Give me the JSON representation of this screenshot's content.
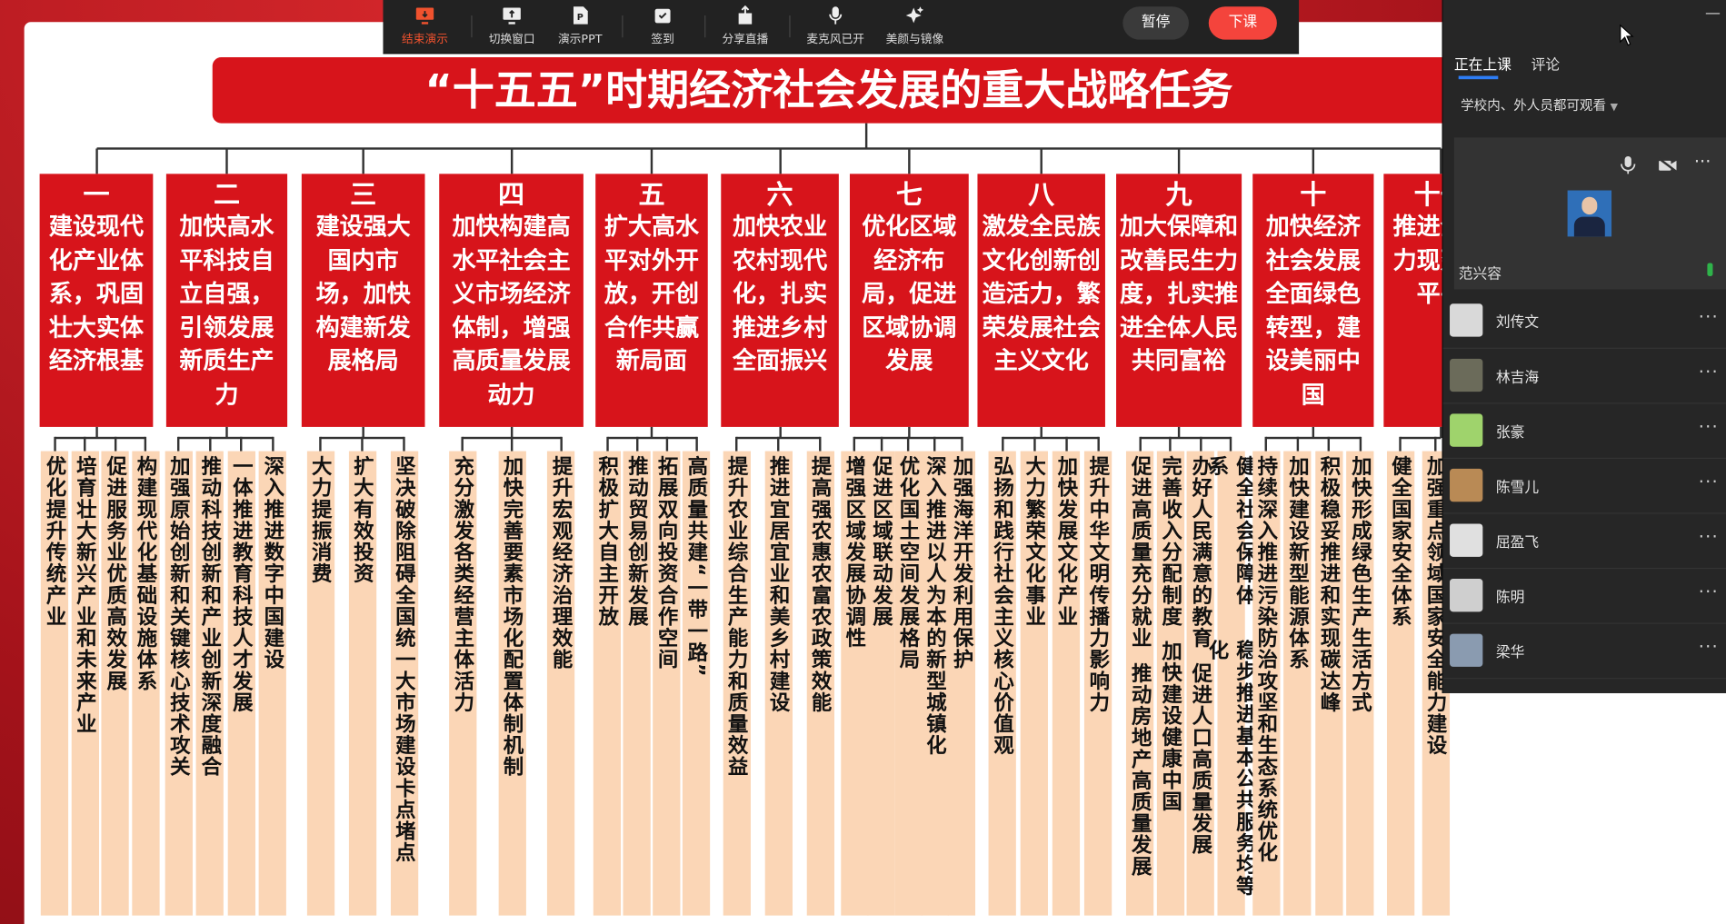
{
  "toolbar": {
    "buttons": [
      "结束演示",
      "切换窗口",
      "演示PPT",
      "签到",
      "分享直播",
      "麦克风已开",
      "美颜与镜像"
    ],
    "pause": "暂停",
    "end_class": "下课"
  },
  "slide": {
    "title": "“十五五”时期经济社会发展的重大战略任务",
    "columns": [
      {
        "number": "一",
        "heading": "建设现代化产业体系，巩固壮大实体经济根基",
        "strips": [
          [
            "优化提升传统产业"
          ],
          [
            "培育壮大新兴产业和未来产业"
          ],
          [
            "促进服务业优质高效发展"
          ],
          [
            "构建现代化基础设施体系"
          ]
        ]
      },
      {
        "number": "二",
        "heading": "加快高水平科技自立自强，引领发展新质生产力",
        "strips": [
          [
            "加强原始创新和关键核心技术攻关"
          ],
          [
            "推动科技创新和产业创新深度融合"
          ],
          [
            "一体推进教育科技人才发展"
          ],
          [
            "深入推进数字中国建设"
          ]
        ]
      },
      {
        "number": "三",
        "heading": "建设强大国内市场，加快构建新发展格局",
        "strips": [
          [
            "大力提振消费"
          ],
          [
            "扩大有效投资"
          ],
          [
            "坚决破除阻碍全国统一大市场建设卡点堵点"
          ]
        ]
      },
      {
        "number": "四",
        "heading": "加快构建高水平社会主义市场经济体制，增强高质量发展动力",
        "strips": [
          [
            "充分激发各类经营主体活力"
          ],
          [
            "加快完善要素市场化配置体制机制"
          ],
          [
            "提升宏观经济治理效能"
          ]
        ]
      },
      {
        "number": "五",
        "heading": "扩大高水平对外开放，开创合作共赢新局面",
        "strips": [
          [
            "积极扩大自主开放"
          ],
          [
            "推动贸易创新发展"
          ],
          [
            "拓展双向投资合作空间"
          ],
          [
            "高质量共建“一带一路”"
          ]
        ]
      },
      {
        "number": "六",
        "heading": "加快农业农村现代化，扎实推进乡村全面振兴",
        "strips": [
          [
            "提升农业综合生产能力和质量效益"
          ],
          [
            "推进宜居宜业和美乡村建设"
          ],
          [
            "提高强农惠农富农政策效能"
          ]
        ]
      },
      {
        "number": "七",
        "heading": "优化区域经济布局，促进区域协调发展",
        "strips": [
          [
            "增强区域发展协调性"
          ],
          [
            "促进区域联动发展"
          ],
          [
            "优化国土空间发展格局"
          ],
          [
            "深入推进以人为本的新型城镇化"
          ],
          [
            "加强海洋开发利用保护"
          ]
        ]
      },
      {
        "number": "八",
        "heading": "激发全民族文化创新创造活力，繁荣发展社会主义文化",
        "strips": [
          [
            "弘扬和践行社会主义核心价值观"
          ],
          [
            "大力繁荣文化事业"
          ],
          [
            "加快发展文化产业"
          ],
          [
            "提升中华文明传播力影响力"
          ]
        ]
      },
      {
        "number": "九",
        "heading": "加大保障和改善民生力度，扎实推进全体人民共同富裕",
        "strips": [
          [
            "促进高质量充分就业",
            "推动房地产高质量发展"
          ],
          [
            "完善收入分配制度",
            "加快建设健康中国"
          ],
          [
            "办好人民满意的教育",
            "促进人口高质量发展"
          ],
          [
            "健全社会保障体系",
            "稳步推进基本公共服务均等化"
          ]
        ]
      },
      {
        "number": "十",
        "heading": "加快经济社会发展全面绿色转型，建设美丽中国",
        "strips": [
          [
            "持续深入推进污染防治攻坚和生态系统优化"
          ],
          [
            "加快建设新型能源体系"
          ],
          [
            "积极稳妥推进和实现碳达峰"
          ],
          [
            "加快形成绿色生产生活方式"
          ]
        ]
      },
      {
        "number": "十一",
        "heading": "推进全体力现建设平平",
        "strips": [
          [
            "健全国家安全体系"
          ],
          [
            "加强重点领域国家安全能力建设"
          ]
        ]
      }
    ]
  },
  "panel": {
    "tabs": [
      "正在上课",
      "评论"
    ],
    "audience": "学校内、外人员都可观看",
    "presenter": "范兴容",
    "participants": [
      "刘传文",
      "林吉海",
      "张豪",
      "陈雪儿",
      "屈盈飞",
      "陈明",
      "梁华"
    ]
  }
}
